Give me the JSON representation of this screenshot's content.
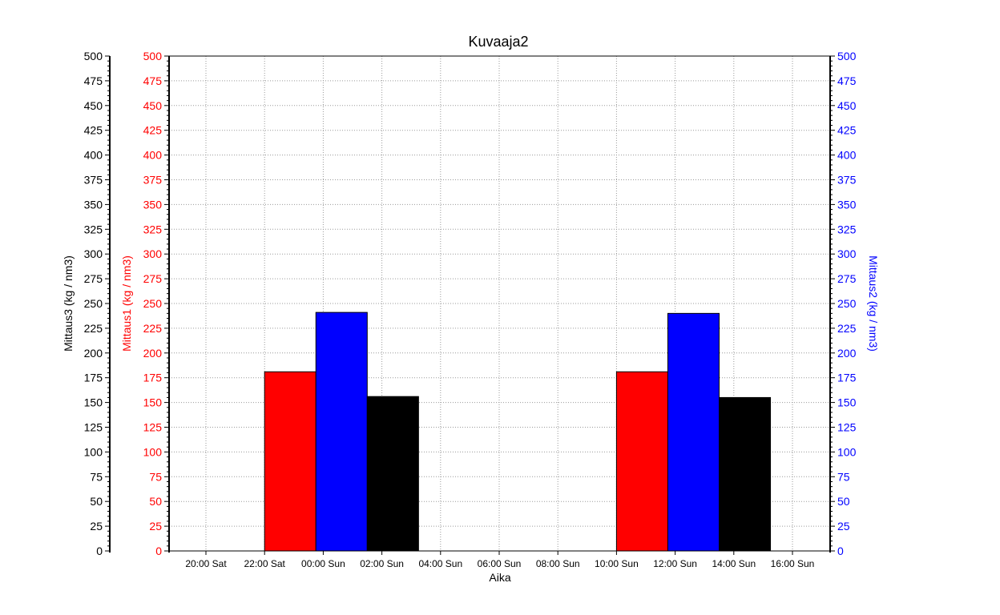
{
  "chart_data": {
    "type": "bar",
    "title": "Kuvaaja2",
    "xlabel": "Aika",
    "x_ticks": [
      "20:00 Sat",
      "22:00 Sat",
      "00:00 Sun",
      "02:00 Sun",
      "04:00 Sun",
      "06:00 Sun",
      "08:00 Sun",
      "10:00 Sun",
      "12:00 Sun",
      "14:00 Sun",
      "16:00 Sun"
    ],
    "y_ticks": [
      0,
      25,
      50,
      75,
      100,
      125,
      150,
      175,
      200,
      225,
      250,
      275,
      300,
      325,
      350,
      375,
      400,
      425,
      450,
      475,
      500
    ],
    "grid": true,
    "axes": [
      {
        "id": "mittaus3",
        "side": "left-outer",
        "label": "Mittaus3   (kg / nm3)",
        "ylim": [
          0,
          500
        ],
        "color": "#000000"
      },
      {
        "id": "mittaus1",
        "side": "left-inner",
        "label": "Mittaus1   (kg / nm3)",
        "ylim": [
          0,
          500
        ],
        "color": "#ff0000"
      },
      {
        "id": "mittaus2",
        "side": "right",
        "label": "Mittaus2   (kg / nm3)",
        "ylim": [
          0,
          500
        ],
        "color": "#0000ff"
      }
    ],
    "series": [
      {
        "name": "Mittaus1",
        "axis": "mittaus1",
        "color": "#ff0000",
        "bars": [
          {
            "x_start": "22:00 Sat",
            "x_end": "23:45 Sat",
            "value": 181
          },
          {
            "x_start": "10:00 Sun",
            "x_end": "11:45 Sun",
            "value": 181
          }
        ]
      },
      {
        "name": "Mittaus2",
        "axis": "mittaus2",
        "color": "#0000ff",
        "bars": [
          {
            "x_start": "23:45 Sat",
            "x_end": "01:30 Sun",
            "value": 241
          },
          {
            "x_start": "11:45 Sun",
            "x_end": "13:30 Sun",
            "value": 240
          }
        ]
      },
      {
        "name": "Mittaus3",
        "axis": "mittaus3",
        "color": "#000000",
        "bars": [
          {
            "x_start": "01:30 Sun",
            "x_end": "03:15 Sun",
            "value": 156
          },
          {
            "x_start": "13:30 Sun",
            "x_end": "15:15 Sun",
            "value": 155
          }
        ]
      }
    ]
  }
}
